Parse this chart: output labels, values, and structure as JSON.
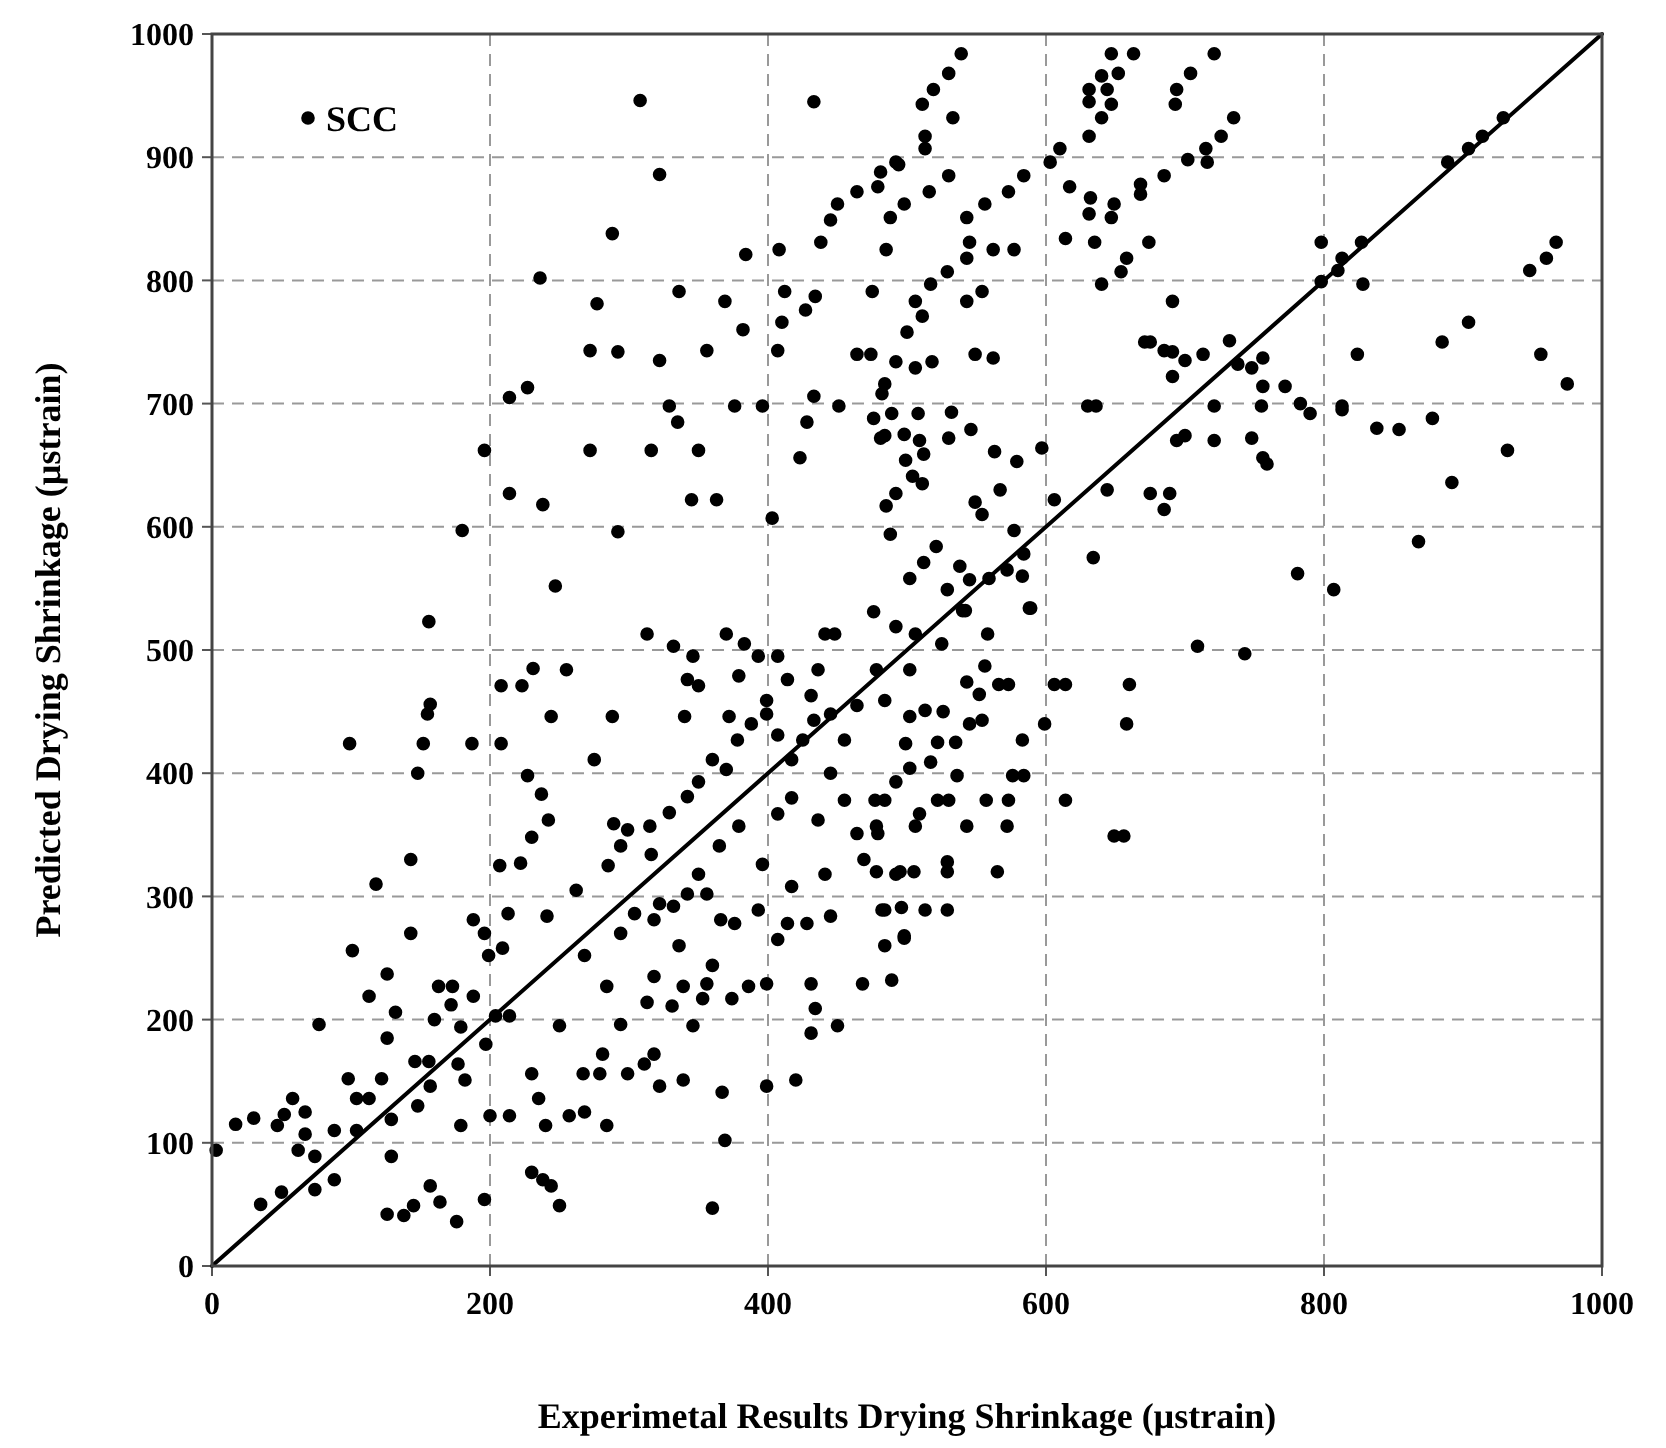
{
  "chart_data": {
    "type": "scatter",
    "xlabel": "Experimetal Results Drying Shrinkage (µstrain)",
    "ylabel": "Predicted Drying Shrinkage (µstrain)",
    "xlim": [
      0,
      1000
    ],
    "ylim": [
      0,
      1000
    ],
    "xticks": [
      0,
      200,
      400,
      600,
      800,
      1000
    ],
    "yticks": [
      0,
      100,
      200,
      300,
      400,
      500,
      600,
      700,
      800,
      900,
      1000
    ],
    "grid": true,
    "legend": "top left",
    "series": [
      {
        "name": "SCC",
        "marker": "circle",
        "color": "#000000",
        "x": [
          308,
          433,
          322,
          288,
          236,
          277,
          384,
          408,
          272,
          292,
          322,
          356,
          382,
          336,
          369,
          214,
          227,
          196,
          214,
          238,
          272,
          316,
          350,
          329,
          335,
          376,
          396,
          345,
          363,
          292,
          180,
          247,
          156,
          403,
          423,
          428,
          433,
          451,
          410,
          407,
          427,
          434,
          412,
          464,
          474,
          485,
          438,
          445,
          450,
          464,
          479,
          494,
          488,
          475,
          484,
          484,
          488,
          476,
          492,
          539,
          530,
          519,
          511,
          533,
          513,
          513,
          492,
          481,
          530,
          516,
          498,
          543,
          556,
          573,
          584,
          545,
          562,
          577,
          543,
          529,
          517,
          506,
          543,
          554,
          511,
          500,
          492,
          506,
          518,
          549,
          562,
          482,
          476,
          489,
          508,
          532,
          481,
          498,
          509,
          530,
          546,
          499,
          512,
          504,
          511,
          492,
          485,
          563,
          579,
          597,
          549,
          554,
          567,
          577,
          584,
          606,
          521,
          512,
          502,
          538,
          545,
          559,
          572,
          583,
          529,
          542,
          588,
          558,
          525,
          506,
          603,
          610,
          631,
          631,
          640,
          647,
          644,
          647,
          640,
          652,
          663,
          631,
          694,
          693,
          704,
          721,
          735,
          726,
          715,
          702,
          716,
          685,
          668,
          668,
          617,
          632,
          649,
          631,
          647,
          614,
          635,
          674,
          658,
          654,
          640,
          691,
          671,
          675,
          685,
          691,
          691,
          700,
          713,
          732,
          738,
          748,
          756,
          756,
          772,
          630,
          636,
          721,
          755,
          783,
          790,
          813,
          813,
          694,
          700,
          721,
          748,
          756,
          759,
          838,
          854,
          878,
          892,
          932,
          644,
          675,
          689,
          685,
          634,
          781,
          807,
          868,
          709,
          743,
          798,
          827,
          813,
          810,
          798,
          828,
          824,
          885,
          904,
          956,
          975,
          948,
          960,
          967,
          889,
          904,
          914,
          929,
          99,
          143,
          118,
          101,
          143,
          77,
          152,
          148,
          155,
          157,
          187,
          208,
          208,
          223,
          231,
          255,
          244,
          288,
          275,
          227,
          237,
          242,
          230,
          222,
          207,
          213,
          188,
          196,
          199,
          209,
          262,
          241,
          163,
          173,
          172,
          188,
          160,
          179,
          126,
          113,
          132,
          126,
          98,
          122,
          104,
          113,
          58,
          52,
          67,
          30,
          17,
          47,
          67,
          88,
          104,
          62,
          74,
          74,
          88,
          50,
          35,
          3,
          129,
          129,
          146,
          156,
          157,
          148,
          177,
          182,
          179,
          200,
          197,
          204,
          214,
          126,
          138,
          145,
          157,
          164,
          176,
          196,
          230,
          238,
          244,
          250,
          214,
          235,
          230,
          240,
          257,
          268,
          284,
          267,
          279,
          299,
          281,
          311,
          318,
          322,
          339,
          367,
          369,
          360,
          399,
          420,
          250,
          268,
          284,
          294,
          313,
          331,
          339,
          346,
          353,
          356,
          374,
          386,
          399,
          431,
          434,
          450,
          431,
          468,
          489,
          318,
          336,
          360,
          294,
          304,
          318,
          322,
          342,
          366,
          376,
          393,
          414,
          407,
          428,
          445,
          484,
          484,
          498,
          492,
          417,
          441,
          396,
          285,
          294,
          299,
          316,
          329,
          342,
          350,
          360,
          370,
          378,
          388,
          399,
          407,
          417,
          425,
          433,
          445,
          455,
          464,
          478,
          445,
          455,
          436,
          417,
          407,
          379,
          365,
          350,
          356,
          332,
          464,
          478,
          469,
          484,
          492,
          499,
          477,
          289,
          315,
          332,
          313,
          346,
          342,
          350,
          370,
          383,
          393,
          407,
          379,
          414,
          436,
          441,
          448,
          340,
          372,
          399,
          431,
          589,
          540,
          502,
          543,
          556,
          573,
          606,
          614,
          660,
          599,
          658,
          583,
          576,
          584,
          614,
          649,
          656,
          557,
          573,
          543,
          572,
          565,
          529,
          505,
          495,
          478,
          482,
          496,
          513,
          529,
          498,
          506,
          529,
          522,
          530,
          509,
          479,
          536,
          502,
          517,
          522,
          535,
          545,
          554,
          526,
          513,
          502,
          484,
          566,
          552
        ],
        "values": [
          946,
          945,
          886,
          838,
          802,
          781,
          821,
          825,
          743,
          742,
          735,
          743,
          760,
          791,
          783,
          705,
          713,
          662,
          627,
          618,
          662,
          662,
          662,
          698,
          685,
          698,
          698,
          622,
          622,
          596,
          597,
          552,
          523,
          607,
          656,
          685,
          706,
          698,
          766,
          743,
          776,
          787,
          791,
          740,
          740,
          825,
          831,
          849,
          862,
          872,
          876,
          894,
          851,
          791,
          716,
          674,
          594,
          531,
          519,
          984,
          968,
          955,
          943,
          932,
          917,
          907,
          896,
          888,
          885,
          872,
          862,
          851,
          862,
          872,
          885,
          831,
          825,
          825,
          818,
          807,
          797,
          783,
          783,
          791,
          771,
          758,
          734,
          729,
          734,
          740,
          737,
          708,
          688,
          692,
          692,
          693,
          672,
          675,
          670,
          672,
          679,
          654,
          659,
          641,
          635,
          627,
          617,
          661,
          653,
          664,
          620,
          610,
          630,
          597,
          578,
          622,
          584,
          571,
          558,
          568,
          557,
          558,
          565,
          560,
          549,
          532,
          534,
          513,
          505,
          513,
          896,
          907,
          955,
          945,
          966,
          984,
          955,
          943,
          932,
          968,
          984,
          917,
          955,
          943,
          968,
          984,
          932,
          917,
          907,
          898,
          896,
          885,
          878,
          870,
          876,
          867,
          862,
          854,
          851,
          834,
          831,
          831,
          818,
          807,
          797,
          783,
          750,
          750,
          743,
          742,
          722,
          735,
          740,
          751,
          732,
          729,
          737,
          714,
          714,
          698,
          698,
          698,
          698,
          700,
          692,
          698,
          695,
          670,
          674,
          670,
          672,
          656,
          651,
          680,
          679,
          688,
          636,
          662,
          630,
          627,
          627,
          614,
          575,
          562,
          549,
          588,
          503,
          497,
          831,
          831,
          818,
          808,
          799,
          797,
          740,
          750,
          766,
          740,
          716,
          808,
          818,
          831,
          896,
          907,
          917,
          932,
          424,
          330,
          310,
          256,
          270,
          196,
          424,
          400,
          448,
          456,
          424,
          424,
          471,
          471,
          485,
          484,
          446,
          446,
          411,
          398,
          383,
          362,
          348,
          327,
          325,
          286,
          281,
          270,
          252,
          258,
          305,
          284,
          227,
          227,
          212,
          219,
          200,
          194,
          237,
          219,
          206,
          185,
          152,
          152,
          136,
          136,
          136,
          123,
          125,
          120,
          115,
          114,
          107,
          110,
          110,
          94,
          89,
          62,
          70,
          60,
          50,
          94,
          119,
          89,
          166,
          166,
          146,
          130,
          164,
          151,
          114,
          122,
          180,
          203,
          203,
          42,
          41,
          49,
          65,
          52,
          36,
          54,
          76,
          70,
          65,
          49,
          122,
          136,
          156,
          114,
          122,
          125,
          114,
          156,
          156,
          156,
          172,
          164,
          172,
          146,
          151,
          141,
          102,
          47,
          146,
          151,
          195,
          252,
          227,
          196,
          214,
          211,
          227,
          195,
          217,
          229,
          217,
          227,
          229,
          229,
          209,
          195,
          189,
          229,
          232,
          235,
          260,
          244,
          270,
          286,
          281,
          294,
          302,
          281,
          278,
          289,
          278,
          265,
          278,
          284,
          260,
          289,
          268,
          318,
          308,
          318,
          326,
          325,
          341,
          354,
          334,
          368,
          381,
          393,
          411,
          403,
          427,
          440,
          448,
          431,
          411,
          427,
          443,
          448,
          427,
          455,
          484,
          400,
          378,
          362,
          380,
          367,
          357,
          341,
          318,
          302,
          292,
          351,
          357,
          330,
          378,
          393,
          424,
          378,
          359,
          357,
          503,
          513,
          495,
          476,
          471,
          513,
          505,
          495,
          495,
          479,
          476,
          484,
          513,
          513,
          446,
          446,
          459,
          463,
          534,
          532,
          484,
          474,
          487,
          472,
          472,
          472,
          472,
          440,
          440,
          427,
          398,
          398,
          378,
          349,
          349,
          378,
          378,
          357,
          357,
          320,
          320,
          320,
          320,
          320,
          289,
          291,
          289,
          289,
          266,
          357,
          328,
          378,
          378,
          367,
          351,
          398,
          404,
          409,
          425,
          425,
          440,
          443,
          450,
          451,
          446,
          459,
          472,
          464
        ]
      },
      {
        "type": "line",
        "color": "#000000",
        "line_style": "solid",
        "x": [
          0,
          1000
        ],
        "values": [
          0,
          1000
        ]
      }
    ]
  }
}
